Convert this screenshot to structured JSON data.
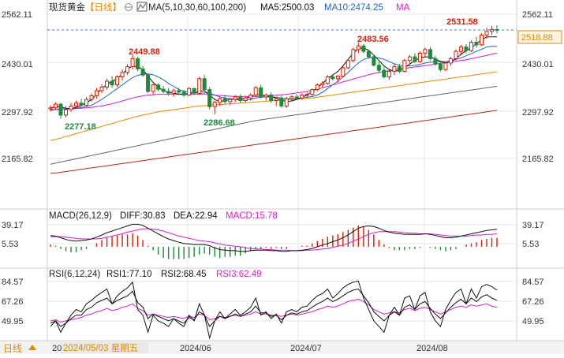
{
  "header": {
    "symbol": "现货黄金",
    "period": "【日线】",
    "toggle_icon": "circle-toggle-icon",
    "ma_icon": "ma-line-icon",
    "ma_params": "MA(5,10,30,60,100,200)",
    "ma5": "MA5:2500.03",
    "ma10": "MA10:2474.25",
    "ma_tail": "MA"
  },
  "macd_header": {
    "params": "MACD(26,12,9)",
    "diff": "DIFF:30.83",
    "dea": "DEA:22.94",
    "macd": "MACD:15.78"
  },
  "rsi_header": {
    "params": "RSI(6,12,24)",
    "rsi1": "RSI1:77.10",
    "rsi2": "RSI2:68.45",
    "rsi3": "RSI3:62.49"
  },
  "footer": {
    "period_button": "日线",
    "cursor_date": "2024/05/03 星期五",
    "year_stub": "20",
    "months": [
      "2024/06",
      "2024/07",
      "2024/08"
    ]
  },
  "price_axis": {
    "ticks": [
      "2562.11",
      "2430.01",
      "2297.92",
      "2165.82"
    ],
    "current": "2518.88",
    "range": [
      2120,
      2580
    ]
  },
  "annotations": {
    "high1": "2449.88",
    "low1": "2277.18",
    "low2": "2286.68",
    "high2": "2483.56",
    "high3": "2531.58"
  },
  "macd_axis": {
    "ticks": [
      "39.17",
      "5.53"
    ]
  },
  "rsi_axis": {
    "ticks": [
      "84.57",
      "67.26",
      "49.95"
    ]
  },
  "colors": {
    "up": "#d81e06",
    "down": "#1f8a3a",
    "ma5": "#111111",
    "ma10": "#1e63c8",
    "ma30": "#d81ec8",
    "ma60": "#e08a00",
    "ma100": "#666666",
    "ma200": "#b02818",
    "dea": "#d81ec8",
    "rsi3": "#d81ec8"
  },
  "chart_data": {
    "type": "candlestick",
    "x_labels": [
      "2024/06",
      "2024/07",
      "2024/08"
    ],
    "candles_ohlc": [
      [
        2302,
        2312,
        2295,
        2305
      ],
      [
        2305,
        2320,
        2300,
        2315
      ],
      [
        2315,
        2318,
        2275,
        2285
      ],
      [
        2285,
        2310,
        2278,
        2300
      ],
      [
        2300,
        2318,
        2294,
        2310
      ],
      [
        2310,
        2325,
        2305,
        2318
      ],
      [
        2318,
        2330,
        2308,
        2312
      ],
      [
        2312,
        2335,
        2310,
        2328
      ],
      [
        2328,
        2345,
        2322,
        2338
      ],
      [
        2338,
        2360,
        2330,
        2352
      ],
      [
        2352,
        2370,
        2345,
        2362
      ],
      [
        2362,
        2385,
        2355,
        2378
      ],
      [
        2378,
        2392,
        2360,
        2368
      ],
      [
        2368,
        2395,
        2362,
        2390
      ],
      [
        2390,
        2410,
        2380,
        2402
      ],
      [
        2402,
        2425,
        2395,
        2418
      ],
      [
        2418,
        2450,
        2410,
        2440
      ],
      [
        2440,
        2445,
        2405,
        2412
      ],
      [
        2412,
        2420,
        2390,
        2395
      ],
      [
        2395,
        2400,
        2345,
        2350
      ],
      [
        2350,
        2372,
        2342,
        2368
      ],
      [
        2368,
        2372,
        2350,
        2356
      ],
      [
        2356,
        2365,
        2345,
        2350
      ],
      [
        2350,
        2360,
        2338,
        2345
      ],
      [
        2345,
        2358,
        2335,
        2352
      ],
      [
        2352,
        2360,
        2340,
        2348
      ],
      [
        2348,
        2355,
        2335,
        2340
      ],
      [
        2340,
        2362,
        2338,
        2358
      ],
      [
        2358,
        2360,
        2340,
        2345
      ],
      [
        2345,
        2390,
        2340,
        2385
      ],
      [
        2385,
        2395,
        2350,
        2355
      ],
      [
        2355,
        2362,
        2300,
        2308
      ],
      [
        2308,
        2325,
        2287,
        2320
      ],
      [
        2320,
        2335,
        2310,
        2330
      ],
      [
        2330,
        2340,
        2315,
        2322
      ],
      [
        2322,
        2332,
        2312,
        2328
      ],
      [
        2328,
        2340,
        2320,
        2335
      ],
      [
        2335,
        2342,
        2318,
        2325
      ],
      [
        2325,
        2338,
        2320,
        2332
      ],
      [
        2332,
        2345,
        2325,
        2340
      ],
      [
        2340,
        2365,
        2335,
        2360
      ],
      [
        2360,
        2368,
        2330,
        2335
      ],
      [
        2335,
        2345,
        2325,
        2340
      ],
      [
        2340,
        2348,
        2318,
        2325
      ],
      [
        2325,
        2335,
        2310,
        2330
      ],
      [
        2330,
        2340,
        2305,
        2310
      ],
      [
        2310,
        2335,
        2305,
        2330
      ],
      [
        2330,
        2340,
        2322,
        2335
      ],
      [
        2335,
        2342,
        2328,
        2332
      ],
      [
        2332,
        2345,
        2328,
        2340
      ],
      [
        2340,
        2348,
        2332,
        2342
      ],
      [
        2342,
        2358,
        2338,
        2355
      ],
      [
        2355,
        2372,
        2350,
        2368
      ],
      [
        2368,
        2378,
        2360,
        2372
      ],
      [
        2372,
        2395,
        2368,
        2390
      ],
      [
        2390,
        2398,
        2380,
        2385
      ],
      [
        2385,
        2395,
        2375,
        2392
      ],
      [
        2392,
        2420,
        2388,
        2415
      ],
      [
        2415,
        2440,
        2410,
        2435
      ],
      [
        2435,
        2470,
        2430,
        2465
      ],
      [
        2465,
        2484,
        2455,
        2475
      ],
      [
        2475,
        2480,
        2455,
        2460
      ],
      [
        2460,
        2465,
        2440,
        2445
      ],
      [
        2445,
        2452,
        2418,
        2422
      ],
      [
        2422,
        2432,
        2400,
        2408
      ],
      [
        2408,
        2418,
        2385,
        2390
      ],
      [
        2390,
        2410,
        2382,
        2405
      ],
      [
        2405,
        2425,
        2395,
        2418
      ],
      [
        2418,
        2425,
        2400,
        2405
      ],
      [
        2405,
        2440,
        2402,
        2435
      ],
      [
        2435,
        2450,
        2425,
        2445
      ],
      [
        2445,
        2455,
        2428,
        2432
      ],
      [
        2432,
        2460,
        2428,
        2455
      ],
      [
        2455,
        2470,
        2445,
        2465
      ],
      [
        2465,
        2472,
        2435,
        2440
      ],
      [
        2440,
        2448,
        2420,
        2425
      ],
      [
        2425,
        2435,
        2405,
        2410
      ],
      [
        2410,
        2432,
        2405,
        2428
      ],
      [
        2428,
        2445,
        2420,
        2440
      ],
      [
        2440,
        2465,
        2435,
        2460
      ],
      [
        2460,
        2478,
        2450,
        2472
      ],
      [
        2472,
        2480,
        2455,
        2462
      ],
      [
        2462,
        2490,
        2458,
        2485
      ],
      [
        2485,
        2500,
        2470,
        2478
      ],
      [
        2478,
        2510,
        2475,
        2505
      ],
      [
        2505,
        2525,
        2495,
        2515
      ],
      [
        2515,
        2530,
        2505,
        2520
      ],
      [
        2520,
        2532,
        2510,
        2519
      ]
    ],
    "ma5": [
      2305,
      2308,
      2307,
      2304,
      2303,
      2306,
      2312,
      2318,
      2328,
      2342,
      2358,
      2370,
      2378,
      2385,
      2398,
      2412,
      2420,
      2418,
      2410,
      2392,
      2375,
      2362,
      2352,
      2348,
      2345,
      2343,
      2342,
      2345,
      2346,
      2350,
      2352,
      2340,
      2328,
      2322,
      2325,
      2328,
      2330,
      2330,
      2332,
      2335,
      2342,
      2340,
      2338,
      2336,
      2332,
      2326,
      2322,
      2324,
      2328,
      2334,
      2340,
      2350,
      2360,
      2372,
      2385,
      2395,
      2405,
      2420,
      2438,
      2455,
      2468,
      2470,
      2463,
      2450,
      2435,
      2420,
      2410,
      2406,
      2408,
      2415,
      2425,
      2435,
      2442,
      2445,
      2445,
      2440,
      2432,
      2428,
      2432,
      2440,
      2452,
      2462,
      2470,
      2480,
      2492,
      2500,
      2500,
      2500
    ],
    "ma10": [
      2298,
      2300,
      2302,
      2302,
      2303,
      2304,
      2306,
      2308,
      2312,
      2320,
      2328,
      2338,
      2348,
      2358,
      2368,
      2378,
      2388,
      2394,
      2398,
      2398,
      2396,
      2390,
      2382,
      2372,
      2364,
      2355,
      2350,
      2348,
      2346,
      2345,
      2346,
      2345,
      2340,
      2335,
      2332,
      2330,
      2328,
      2326,
      2326,
      2328,
      2332,
      2334,
      2335,
      2335,
      2334,
      2332,
      2330,
      2330,
      2330,
      2332,
      2334,
      2336,
      2340,
      2348,
      2358,
      2368,
      2378,
      2390,
      2402,
      2415,
      2428,
      2438,
      2442,
      2444,
      2442,
      2438,
      2432,
      2426,
      2422,
      2420,
      2420,
      2422,
      2424,
      2428,
      2430,
      2432,
      2432,
      2432,
      2434,
      2438,
      2442,
      2448,
      2454,
      2460,
      2466,
      2472,
      2474,
      2474
    ],
    "ma30": [
      2300,
      2300,
      2301,
      2302,
      2302,
      2303,
      2304,
      2305,
      2306,
      2308,
      2310,
      2313,
      2316,
      2320,
      2324,
      2328,
      2332,
      2335,
      2338,
      2340,
      2341,
      2342,
      2342,
      2342,
      2342,
      2342,
      2342,
      2342,
      2342,
      2342,
      2342,
      2341,
      2340,
      2339,
      2338,
      2337,
      2336,
      2336,
      2336,
      2336,
      2336,
      2337,
      2338,
      2339,
      2340,
      2341,
      2342,
      2344,
      2346,
      2348,
      2350,
      2353,
      2356,
      2360,
      2364,
      2368,
      2372,
      2376,
      2380,
      2384,
      2388,
      2392,
      2396,
      2399,
      2402,
      2405,
      2407,
      2409,
      2411,
      2413,
      2415,
      2417,
      2419,
      2421,
      2423,
      2425,
      2427,
      2429,
      2431,
      2433,
      2435,
      2437,
      2440,
      2443,
      2446,
      2449,
      2452,
      2455
    ],
    "ma60": [
      2215,
      2218,
      2222,
      2226,
      2230,
      2234,
      2238,
      2242,
      2246,
      2250,
      2254,
      2258,
      2262,
      2266,
      2270,
      2274,
      2278,
      2282,
      2285,
      2288,
      2291,
      2294,
      2296,
      2298,
      2300,
      2302,
      2304,
      2306,
      2308,
      2310,
      2311,
      2312,
      2313,
      2314,
      2315,
      2316,
      2317,
      2318,
      2319,
      2320,
      2321,
      2322,
      2323,
      2324,
      2325,
      2326,
      2327,
      2328,
      2329,
      2330,
      2331,
      2332,
      2334,
      2336,
      2338,
      2340,
      2342,
      2344,
      2346,
      2348,
      2350,
      2352,
      2354,
      2356,
      2358,
      2360,
      2362,
      2364,
      2366,
      2368,
      2370,
      2372,
      2374,
      2376,
      2378,
      2380,
      2382,
      2384,
      2386,
      2388,
      2390,
      2392,
      2394,
      2396,
      2398,
      2400,
      2402,
      2404
    ],
    "ma100": [
      2150,
      2153,
      2156,
      2159,
      2162,
      2165,
      2168,
      2171,
      2174,
      2177,
      2180,
      2183,
      2186,
      2189,
      2192,
      2195,
      2198,
      2201,
      2204,
      2207,
      2210,
      2213,
      2216,
      2219,
      2222,
      2225,
      2228,
      2231,
      2234,
      2237,
      2240,
      2243,
      2246,
      2249,
      2252,
      2255,
      2258,
      2261,
      2264,
      2267,
      2270,
      2272,
      2274,
      2276,
      2278,
      2280,
      2282,
      2284,
      2286,
      2288,
      2290,
      2292,
      2294,
      2296,
      2298,
      2300,
      2302,
      2304,
      2306,
      2308,
      2310,
      2312,
      2314,
      2316,
      2318,
      2320,
      2322,
      2324,
      2326,
      2328,
      2330,
      2332,
      2334,
      2336,
      2338,
      2340,
      2342,
      2344,
      2346,
      2348,
      2350,
      2352,
      2354,
      2356,
      2358,
      2360,
      2362,
      2364
    ],
    "ma200": [
      2125,
      2126,
      2128,
      2130,
      2132,
      2134,
      2136,
      2138,
      2140,
      2142,
      2144,
      2146,
      2148,
      2150,
      2152,
      2154,
      2156,
      2158,
      2160,
      2162,
      2164,
      2166,
      2168,
      2170,
      2172,
      2174,
      2176,
      2178,
      2180,
      2182,
      2184,
      2186,
      2188,
      2190,
      2192,
      2194,
      2196,
      2198,
      2200,
      2202,
      2204,
      2206,
      2208,
      2210,
      2212,
      2214,
      2216,
      2218,
      2220,
      2222,
      2224,
      2226,
      2228,
      2230,
      2232,
      2234,
      2236,
      2238,
      2240,
      2242,
      2244,
      2246,
      2248,
      2250,
      2252,
      2254,
      2256,
      2258,
      2260,
      2262,
      2264,
      2266,
      2268,
      2270,
      2272,
      2274,
      2276,
      2278,
      2280,
      2282,
      2284,
      2286,
      2288,
      2290,
      2292,
      2294,
      2296,
      2298
    ],
    "diff": [
      20,
      19,
      16,
      13,
      11,
      10,
      11,
      12,
      14,
      17,
      21,
      25,
      28,
      31,
      34,
      37,
      40,
      40,
      38,
      33,
      28,
      23,
      18,
      14,
      11,
      8,
      6,
      5,
      4,
      4,
      4,
      2,
      -2,
      -5,
      -6,
      -7,
      -7,
      -8,
      -8,
      -7,
      -6,
      -6,
      -6,
      -7,
      -7,
      -8,
      -8,
      -7,
      -7,
      -6,
      -5,
      -3,
      0,
      3,
      6,
      9,
      12,
      16,
      21,
      27,
      33,
      36,
      37,
      36,
      33,
      29,
      26,
      24,
      23,
      22,
      22,
      22,
      22,
      23,
      22,
      20,
      18,
      16,
      16,
      17,
      19,
      21,
      23,
      25,
      27,
      29,
      30,
      31
    ],
    "dea": [
      18,
      18,
      18,
      17,
      16,
      15,
      14,
      14,
      14,
      14,
      15,
      17,
      19,
      21,
      23,
      26,
      28,
      30,
      32,
      32,
      31,
      30,
      28,
      25,
      22,
      19,
      17,
      15,
      13,
      11,
      10,
      9,
      7,
      5,
      3,
      2,
      1,
      0,
      -2,
      -3,
      -4,
      -4,
      -5,
      -5,
      -6,
      -6,
      -6,
      -7,
      -7,
      -7,
      -6,
      -6,
      -5,
      -4,
      -3,
      -1,
      1,
      3,
      6,
      10,
      14,
      18,
      22,
      25,
      27,
      27,
      27,
      27,
      26,
      25,
      24,
      24,
      23,
      23,
      23,
      22,
      21,
      20,
      19,
      19,
      19,
      19,
      20,
      21,
      21,
      22,
      22,
      23
    ],
    "rsi1": [
      45,
      50,
      40,
      48,
      55,
      60,
      58,
      65,
      68,
      72,
      75,
      78,
      65,
      72,
      76,
      79,
      84,
      60,
      55,
      40,
      55,
      50,
      48,
      45,
      52,
      48,
      45,
      55,
      50,
      65,
      55,
      35,
      50,
      58,
      52,
      56,
      60,
      55,
      58,
      62,
      70,
      55,
      58,
      52,
      56,
      48,
      58,
      60,
      58,
      62,
      63,
      68,
      72,
      74,
      78,
      70,
      74,
      79,
      82,
      84,
      85,
      70,
      60,
      50,
      45,
      40,
      55,
      62,
      55,
      70,
      72,
      60,
      72,
      75,
      58,
      50,
      45,
      60,
      68,
      75,
      78,
      65,
      78,
      70,
      80,
      82,
      80,
      77
    ],
    "rsi2": [
      48,
      50,
      45,
      48,
      52,
      55,
      55,
      60,
      62,
      66,
      68,
      70,
      65,
      68,
      70,
      72,
      76,
      66,
      62,
      52,
      56,
      54,
      52,
      50,
      52,
      50,
      48,
      53,
      51,
      58,
      55,
      45,
      50,
      54,
      52,
      54,
      56,
      54,
      56,
      58,
      63,
      57,
      57,
      54,
      55,
      51,
      55,
      57,
      56,
      58,
      59,
      62,
      65,
      67,
      70,
      67,
      69,
      72,
      75,
      77,
      78,
      72,
      66,
      58,
      54,
      50,
      55,
      58,
      55,
      62,
      64,
      60,
      65,
      67,
      61,
      56,
      52,
      57,
      62,
      66,
      69,
      65,
      70,
      67,
      71,
      73,
      70,
      68
    ],
    "rsi3": [
      50,
      51,
      49,
      50,
      51,
      52,
      53,
      55,
      56,
      58,
      59,
      61,
      59,
      60,
      62,
      63,
      65,
      61,
      59,
      55,
      56,
      55,
      54,
      53,
      54,
      53,
      52,
      54,
      53,
      56,
      55,
      51,
      52,
      54,
      53,
      54,
      55,
      54,
      55,
      56,
      58,
      56,
      56,
      55,
      55,
      54,
      55,
      56,
      55,
      56,
      57,
      58,
      60,
      61,
      63,
      62,
      63,
      65,
      67,
      68,
      69,
      67,
      64,
      60,
      58,
      56,
      57,
      58,
      57,
      60,
      61,
      59,
      61,
      62,
      60,
      58,
      56,
      58,
      60,
      62,
      63,
      62,
      64,
      63,
      64,
      65,
      63,
      62
    ]
  }
}
